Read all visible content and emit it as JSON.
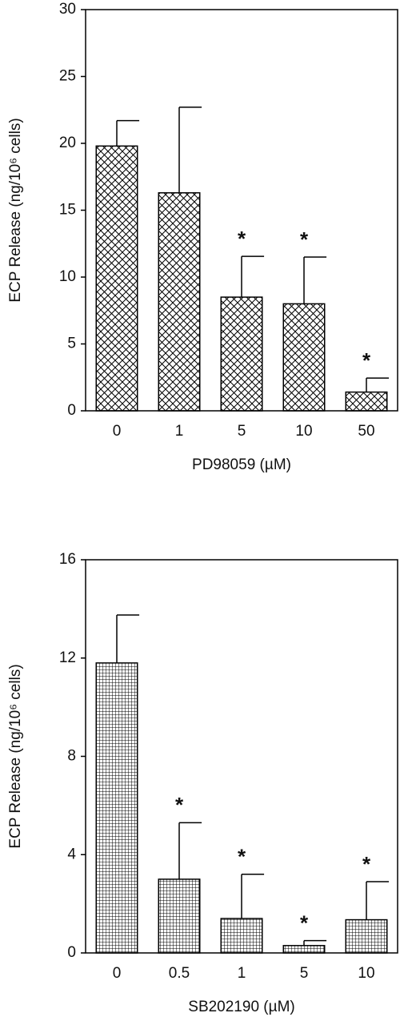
{
  "chart_data": [
    {
      "type": "bar",
      "ylabel": "ECP Release (ng/10⁶ cells)",
      "xlabel": "PD98059 (µM)",
      "categories": [
        "0",
        "1",
        "5",
        "10",
        "50"
      ],
      "values": [
        19.8,
        16.3,
        8.5,
        8.0,
        1.4
      ],
      "errors": [
        1.9,
        6.4,
        3.05,
        3.5,
        1.05
      ],
      "markers": [
        null,
        null,
        "*",
        "*",
        "*"
      ],
      "ylim": [
        0,
        30
      ],
      "yticks": [
        0,
        5,
        10,
        15,
        20,
        25,
        30
      ],
      "pattern": "crosshatch",
      "color": "#000000"
    },
    {
      "type": "bar",
      "ylabel": "ECP Release (ng/10⁶ cells)",
      "xlabel": "SB202190 (µM)",
      "categories": [
        "0",
        "0.5",
        "1",
        "5",
        "10"
      ],
      "values": [
        11.8,
        3.0,
        1.4,
        0.3,
        1.35
      ],
      "errors": [
        1.95,
        2.3,
        1.8,
        0.2,
        1.55
      ],
      "markers": [
        null,
        "*",
        "*",
        "*",
        "*"
      ],
      "ylim": [
        0,
        16
      ],
      "yticks": [
        0,
        4,
        8,
        12,
        16
      ],
      "pattern": "grid",
      "color": "#000000"
    }
  ]
}
